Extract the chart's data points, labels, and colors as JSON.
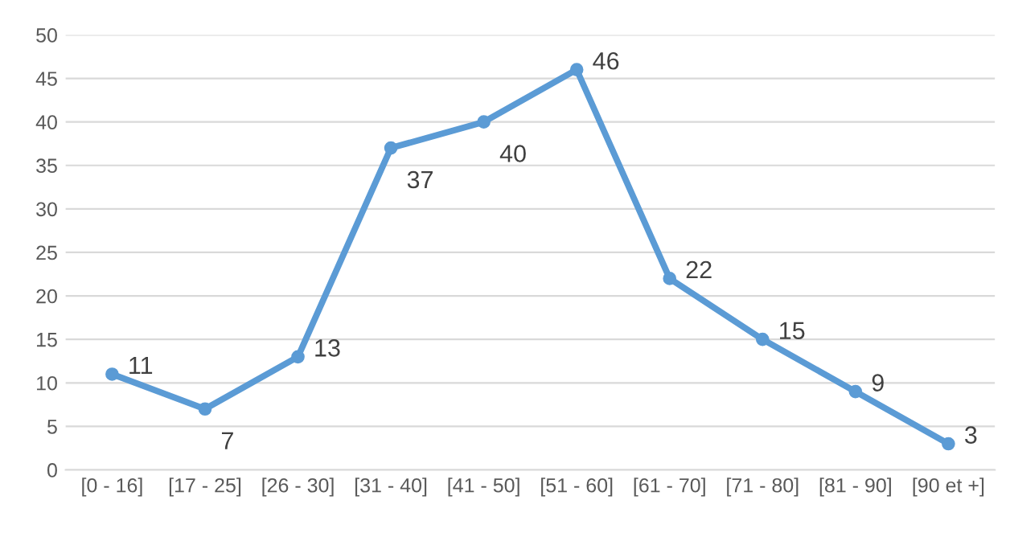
{
  "chart_data": {
    "type": "line",
    "categories": [
      "[0 - 16]",
      "[17 - 25]",
      "[26 - 30]",
      "[31 - 40]",
      "[41 - 50]",
      "[51 - 60]",
      "[61 - 70]",
      "[71 - 80]",
      "[81 - 90]",
      "[90 et +]"
    ],
    "series": [
      {
        "color": "#5b9bd5",
        "values": [
          11,
          7,
          13,
          37,
          40,
          46,
          22,
          15,
          9,
          3
        ]
      }
    ],
    "ylim": [
      0,
      50
    ],
    "yticks": [
      0,
      5,
      10,
      15,
      20,
      25,
      30,
      35,
      40,
      45,
      50
    ],
    "grid": "y",
    "marker": "circle",
    "line_style": "solid",
    "data_labels": true
  }
}
